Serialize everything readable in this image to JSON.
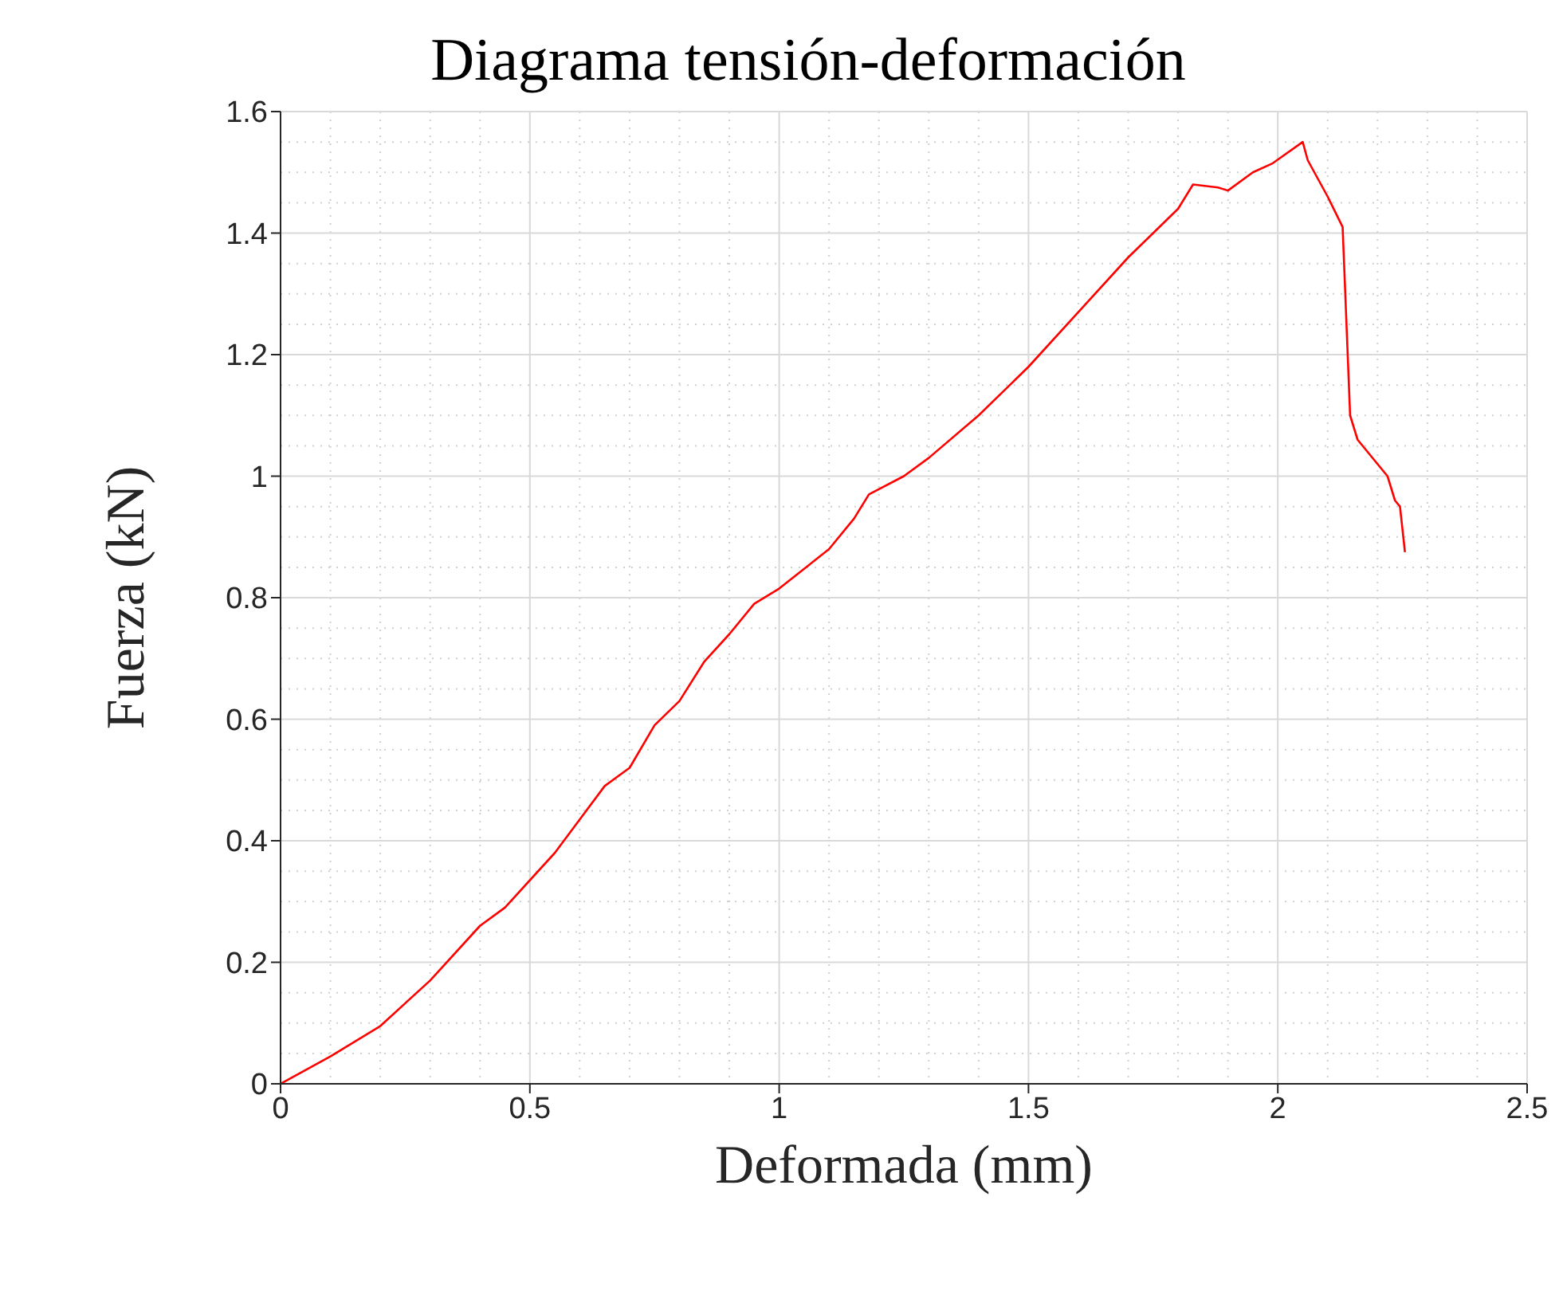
{
  "chart_data": {
    "type": "line",
    "title": "Diagrama tensión-deformación",
    "xlabel": "Deformada (mm)",
    "ylabel": "Fuerza (kN)",
    "xlim": [
      0,
      2.5
    ],
    "xticks": [
      0,
      0.5,
      1,
      1.5,
      2,
      2.5
    ],
    "ylim": [
      0,
      1.6
    ],
    "yticks": [
      0,
      0.2,
      0.4,
      0.6,
      0.8,
      1,
      1.2,
      1.4,
      1.6
    ],
    "grid": true,
    "legend": false,
    "marker": "none",
    "line_style": "solid",
    "series": [
      {
        "color": "#ff0000",
        "x": [
          0,
          0.1,
          0.2,
          0.3,
          0.4,
          0.45,
          0.55,
          0.65,
          0.7,
          0.75,
          0.8,
          0.85,
          0.9,
          0.95,
          1.0,
          1.1,
          1.15,
          1.18,
          1.25,
          1.3,
          1.4,
          1.5,
          1.6,
          1.7,
          1.8,
          1.83,
          1.88,
          1.9,
          1.95,
          1.99,
          2.05,
          2.06,
          2.1,
          2.13,
          2.145,
          2.16,
          2.2,
          2.22,
          2.235,
          2.245,
          2.255
        ],
        "values": [
          0,
          0.045,
          0.095,
          0.17,
          0.26,
          0.29,
          0.38,
          0.49,
          0.52,
          0.59,
          0.63,
          0.695,
          0.74,
          0.79,
          0.815,
          0.88,
          0.93,
          0.97,
          1.0,
          1.03,
          1.1,
          1.18,
          1.27,
          1.36,
          1.44,
          1.48,
          1.475,
          1.47,
          1.5,
          1.515,
          1.55,
          1.52,
          1.46,
          1.41,
          1.1,
          1.06,
          1.02,
          1.0,
          0.96,
          0.95,
          0.875
        ]
      }
    ]
  }
}
